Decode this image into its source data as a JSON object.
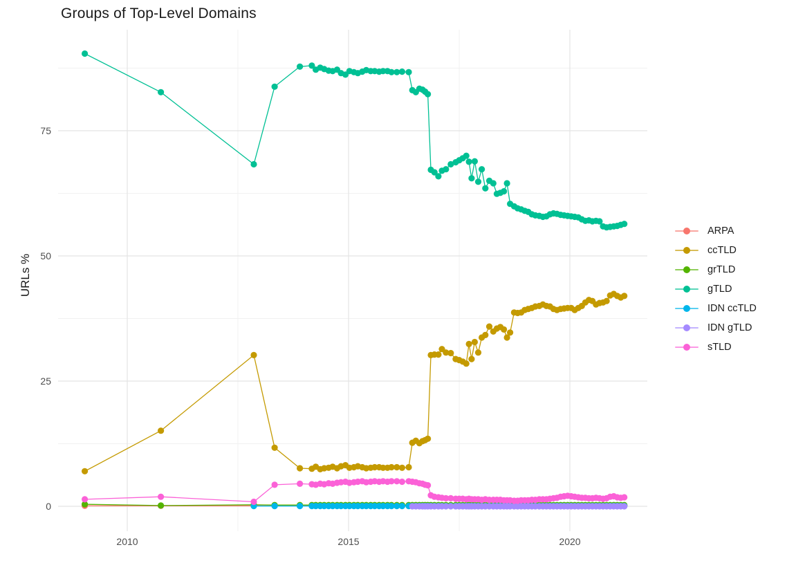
{
  "title": "Groups of Top-Level Domains",
  "axes": {
    "y_title": "URLs %",
    "y_major_ticks": [
      0,
      25,
      50,
      75
    ],
    "y_minor_ticks": [
      12.5,
      37.5,
      62.5,
      87.5
    ],
    "x_major_ticks": [
      2010,
      2015,
      2020
    ],
    "x_minor_ticks": [
      2012.5,
      2017.5
    ],
    "x_range": [
      2008.45,
      2021.77
    ],
    "y_range": [
      -5,
      94.5
    ],
    "grid_major_color": "#e4e4e4",
    "grid_minor_color": "#f1f1f1"
  },
  "legend": {
    "items": [
      "ARPA",
      "ccTLD",
      "grTLD",
      "gTLD",
      "IDN ccTLD",
      "IDN gTLD",
      "sTLD"
    ]
  },
  "chart_data": {
    "type": "line",
    "title": "Groups of Top-Level Domains",
    "xlabel": "",
    "ylabel": "URLs %",
    "legend_position": "right",
    "grid": true,
    "shared_x": [
      2013.33,
      2013.9,
      2014.17,
      2014.26,
      2014.36,
      2014.45,
      2014.55,
      2014.64,
      2014.74,
      2014.83,
      2014.93,
      2015.02,
      2015.12,
      2015.21,
      2015.31,
      2015.4,
      2015.5,
      2015.59,
      2015.69,
      2015.78,
      2015.88,
      2015.97,
      2016.09,
      2016.21,
      2016.36,
      2016.44,
      2016.52,
      2016.6,
      2016.67,
      2016.73,
      2016.79,
      2016.86,
      2016.94,
      2017.03,
      2017.11,
      2017.2,
      2017.31,
      2017.42,
      2017.5,
      2017.58,
      2017.66,
      2017.72,
      2017.78,
      2017.85,
      2017.93,
      2018.01,
      2018.09,
      2018.18,
      2018.27,
      2018.35,
      2018.43,
      2018.51,
      2018.58,
      2018.65,
      2018.74,
      2018.82,
      2018.9,
      2018.98,
      2019.06,
      2019.14,
      2019.22,
      2019.31,
      2019.39,
      2019.47,
      2019.55,
      2019.63,
      2019.71,
      2019.79,
      2019.87,
      2019.95,
      2020.03,
      2020.11,
      2020.19,
      2020.27,
      2020.35,
      2020.43,
      2020.51,
      2020.59,
      2020.67,
      2020.75,
      2020.83,
      2020.91,
      2020.99,
      2021.07,
      2021.15,
      2021.23
    ],
    "series": [
      {
        "name": "ARPA",
        "color": "#F8766D",
        "pre": [
          [
            2009.04,
            0.1
          ],
          [
            2010.76,
            0.1
          ],
          [
            2012.86,
            0.1
          ]
        ],
        "flat": {
          "from": 2013.33,
          "to": 2021.23,
          "value": 0.1
        }
      },
      {
        "name": "ccTLD",
        "color": "#C49A00",
        "pre": [
          [
            2009.04,
            7.0
          ],
          [
            2010.76,
            15.1
          ],
          [
            2012.86,
            30.2
          ]
        ],
        "dense_y": [
          11.7,
          7.6,
          7.5,
          7.9,
          7.4,
          7.6,
          7.7,
          7.9,
          7.6,
          8.0,
          8.2,
          7.7,
          7.8,
          8.0,
          7.8,
          7.6,
          7.7,
          7.8,
          7.8,
          7.7,
          7.7,
          7.8,
          7.8,
          7.7,
          7.8,
          12.7,
          13.1,
          12.6,
          13.0,
          13.2,
          13.5,
          30.2,
          30.3,
          30.3,
          31.4,
          30.7,
          30.6,
          29.4,
          29.2,
          28.9,
          28.5,
          32.4,
          29.4,
          32.8,
          30.7,
          33.7,
          34.2,
          35.9,
          34.9,
          35.5,
          35.8,
          35.3,
          33.7,
          34.7,
          38.7,
          38.6,
          38.7,
          39.2,
          39.4,
          39.6,
          39.9,
          40.0,
          40.3,
          40.0,
          39.9,
          39.4,
          39.2,
          39.4,
          39.5,
          39.6,
          39.6,
          39.2,
          39.6,
          40.0,
          40.7,
          41.2,
          41.0,
          40.3,
          40.6,
          40.7,
          41.0,
          42.1,
          42.4,
          42.0,
          41.7,
          42.0
        ]
      },
      {
        "name": "grTLD",
        "color": "#53B400",
        "pre": [
          [
            2009.04,
            0.4
          ],
          [
            2010.76,
            0.15
          ],
          [
            2012.86,
            0.3
          ]
        ],
        "flat": {
          "from": 2013.33,
          "to": 2021.23,
          "value": 0.25
        }
      },
      {
        "name": "gTLD",
        "color": "#00C094",
        "pre": [
          [
            2009.04,
            90.4
          ],
          [
            2010.76,
            82.7
          ],
          [
            2012.86,
            68.3
          ]
        ],
        "dense_y": [
          83.8,
          87.8,
          88.0,
          87.2,
          87.6,
          87.3,
          87.0,
          86.9,
          87.2,
          86.5,
          86.2,
          86.9,
          86.7,
          86.5,
          86.8,
          87.1,
          86.9,
          86.9,
          86.8,
          86.9,
          86.9,
          86.7,
          86.7,
          86.8,
          86.7,
          83.1,
          82.7,
          83.4,
          83.2,
          82.8,
          82.3,
          67.2,
          66.7,
          65.9,
          67.0,
          67.3,
          68.3,
          68.7,
          69.1,
          69.5,
          70.0,
          68.8,
          65.5,
          68.9,
          64.8,
          67.3,
          63.5,
          65.0,
          64.5,
          62.4,
          62.6,
          62.9,
          64.5,
          60.4,
          59.9,
          59.5,
          59.3,
          59.0,
          58.8,
          58.3,
          58.1,
          58.0,
          57.8,
          57.9,
          58.3,
          58.5,
          58.4,
          58.2,
          58.1,
          58.0,
          57.9,
          57.8,
          57.7,
          57.3,
          57.0,
          57.1,
          56.9,
          57.0,
          56.9,
          55.9,
          55.7,
          55.8,
          55.9,
          56.0,
          56.2,
          56.4
        ]
      },
      {
        "name": "IDN ccTLD",
        "color": "#00B6EB",
        "pre": [
          [
            2012.86,
            0.05
          ]
        ],
        "flat": {
          "from": 2013.33,
          "to": 2021.23,
          "value": 0.05
        }
      },
      {
        "name": "IDN gTLD",
        "color": "#A58AFF",
        "pre": [],
        "flat": {
          "from": 2016.44,
          "to": 2021.23,
          "value": 0.0
        }
      },
      {
        "name": "sTLD",
        "color": "#FB61D7",
        "pre": [
          [
            2009.04,
            1.4
          ],
          [
            2010.76,
            1.9
          ],
          [
            2012.86,
            0.9
          ]
        ],
        "dense_y": [
          4.3,
          4.5,
          4.4,
          4.3,
          4.5,
          4.4,
          4.6,
          4.5,
          4.7,
          4.8,
          4.9,
          4.7,
          4.8,
          4.9,
          5.0,
          4.8,
          4.9,
          5.0,
          4.9,
          5.0,
          4.9,
          5.0,
          5.0,
          4.9,
          5.0,
          4.9,
          4.8,
          4.6,
          4.5,
          4.3,
          4.2,
          2.2,
          1.9,
          1.8,
          1.7,
          1.6,
          1.6,
          1.5,
          1.5,
          1.5,
          1.4,
          1.5,
          1.4,
          1.4,
          1.4,
          1.3,
          1.4,
          1.3,
          1.3,
          1.3,
          1.3,
          1.2,
          1.2,
          1.2,
          1.1,
          1.1,
          1.2,
          1.2,
          1.2,
          1.3,
          1.3,
          1.4,
          1.4,
          1.4,
          1.5,
          1.6,
          1.7,
          1.9,
          2.0,
          2.1,
          2.0,
          1.9,
          1.8,
          1.7,
          1.7,
          1.6,
          1.6,
          1.7,
          1.6,
          1.5,
          1.6,
          1.9,
          2.0,
          1.8,
          1.7,
          1.8
        ]
      }
    ]
  }
}
